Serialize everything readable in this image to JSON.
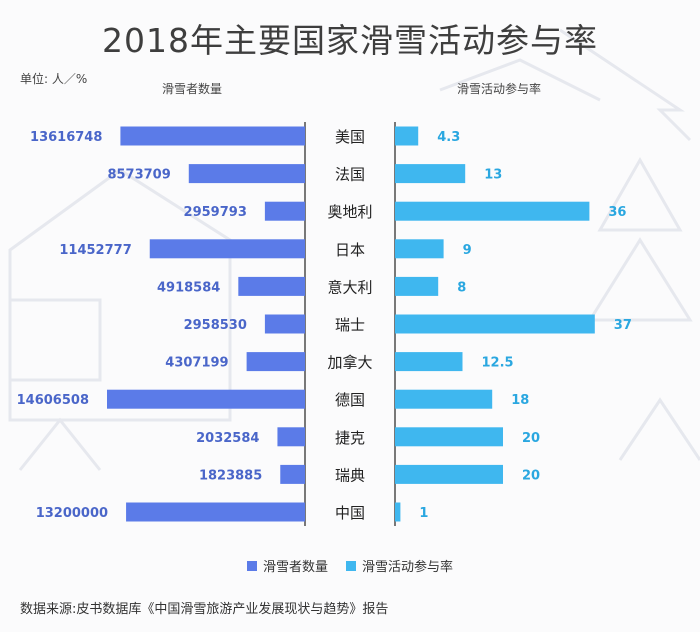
{
  "title": "2018年主要国家滑雪活动参与率",
  "unit_label": "单位: 人／%",
  "left_header": "滑雪者数量",
  "right_header": "滑雪活动参与率",
  "source": "数据来源:皮书数据库《中国滑雪旅游产业发展现状与趋势》报告",
  "colors": {
    "skiers": "#5b7be8",
    "rate": "#3fb7ef",
    "skiers_text": "#4a66c9",
    "rate_text": "#2aa7e0"
  },
  "chart_data": {
    "type": "bar",
    "title": "2018年主要国家滑雪活动参与率",
    "categories": [
      "美国",
      "法国",
      "奥地利",
      "日本",
      "意大利",
      "瑞士",
      "加拿大",
      "德国",
      "捷克",
      "瑞典",
      "中国"
    ],
    "series": [
      {
        "name": "滑雪者数量",
        "values": [
          13616748,
          8573709,
          2959793,
          11452777,
          4918584,
          2958530,
          4307199,
          14606508,
          2032584,
          1823885,
          13200000
        ]
      },
      {
        "name": "滑雪活动参与率",
        "values": [
          4.3,
          13,
          36,
          9,
          8,
          37,
          12.5,
          18,
          20,
          20,
          1
        ]
      }
    ],
    "value_labels": {
      "skiers": [
        "13616748",
        "8573709",
        "2959793",
        "11452777",
        "4918584",
        "2958530",
        "4307199",
        "14606508",
        "2032584",
        "1823885",
        "13200000"
      ],
      "rate": [
        "4.3",
        "13",
        "36",
        "9",
        "8",
        "37",
        "12.5",
        "18",
        "20",
        "20",
        "1"
      ]
    },
    "legend": [
      "滑雪者数量",
      "滑雪活动参与率"
    ],
    "legend_position": "bottom"
  }
}
